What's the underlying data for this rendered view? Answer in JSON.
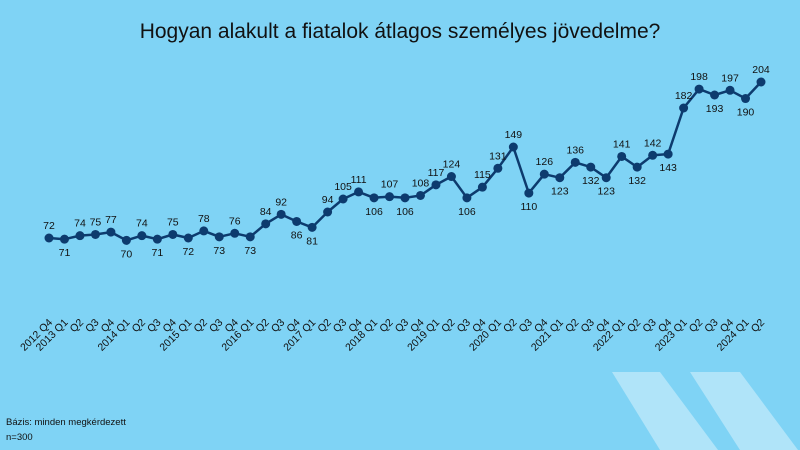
{
  "chart_data": {
    "type": "line",
    "title": "Hogyan alakult a fiatalok átlagos személyes jövedelme?",
    "xlabel": "",
    "ylabel": "",
    "categories": [
      "2012 Q4",
      "2013 Q1",
      "Q2",
      "Q3",
      "Q4",
      "2014 Q1",
      "Q2",
      "Q3",
      "Q4",
      "2015 Q1",
      "Q2",
      "Q3",
      "Q4",
      "2016 Q1",
      "Q2",
      "Q3",
      "Q4",
      "2017 Q1",
      "Q2",
      "Q3",
      "Q4",
      "2018 Q1",
      "Q2",
      "Q3",
      "Q4",
      "2019 Q1",
      "Q2",
      "Q3",
      "Q4",
      "2020 Q1",
      "Q2",
      "Q3",
      "Q4",
      "2021 Q1",
      "Q2",
      "Q3",
      "Q4",
      "2022 Q1",
      "Q2",
      "Q3",
      "Q4",
      "2023 Q1",
      "Q2",
      "Q3",
      "Q4",
      "2024 Q1",
      "Q2"
    ],
    "values": [
      72,
      71,
      74,
      75,
      77,
      70,
      74,
      71,
      75,
      72,
      78,
      73,
      76,
      73,
      84,
      92,
      86,
      81,
      94,
      105,
      111,
      106,
      107,
      106,
      108,
      117,
      124,
      106,
      115,
      131,
      149,
      110,
      126,
      123,
      136,
      132,
      123,
      141,
      132,
      142,
      143,
      182,
      198,
      193,
      197,
      190,
      204
    ],
    "label_position": [
      "above",
      "below",
      "above",
      "above",
      "above",
      "below",
      "above",
      "below",
      "above",
      "below",
      "above",
      "below",
      "above",
      "below",
      "above",
      "above",
      "below",
      "below",
      "above",
      "above",
      "above",
      "below",
      "above",
      "below",
      "above",
      "above",
      "above",
      "below",
      "above",
      "above",
      "above",
      "below",
      "above",
      "below",
      "above",
      "below",
      "below",
      "above",
      "below",
      "above",
      "below",
      "above",
      "above",
      "below",
      "above",
      "below",
      "above"
    ],
    "ylim": [
      40,
      215
    ],
    "grid": false,
    "legend": "none",
    "colors": {
      "line": "#0d3b6e",
      "background": "#7fd3f5",
      "chevron": "#b6e6f9"
    }
  },
  "footnotes": {
    "base": "Bázis: minden megkérdezett",
    "n": "n=300"
  }
}
